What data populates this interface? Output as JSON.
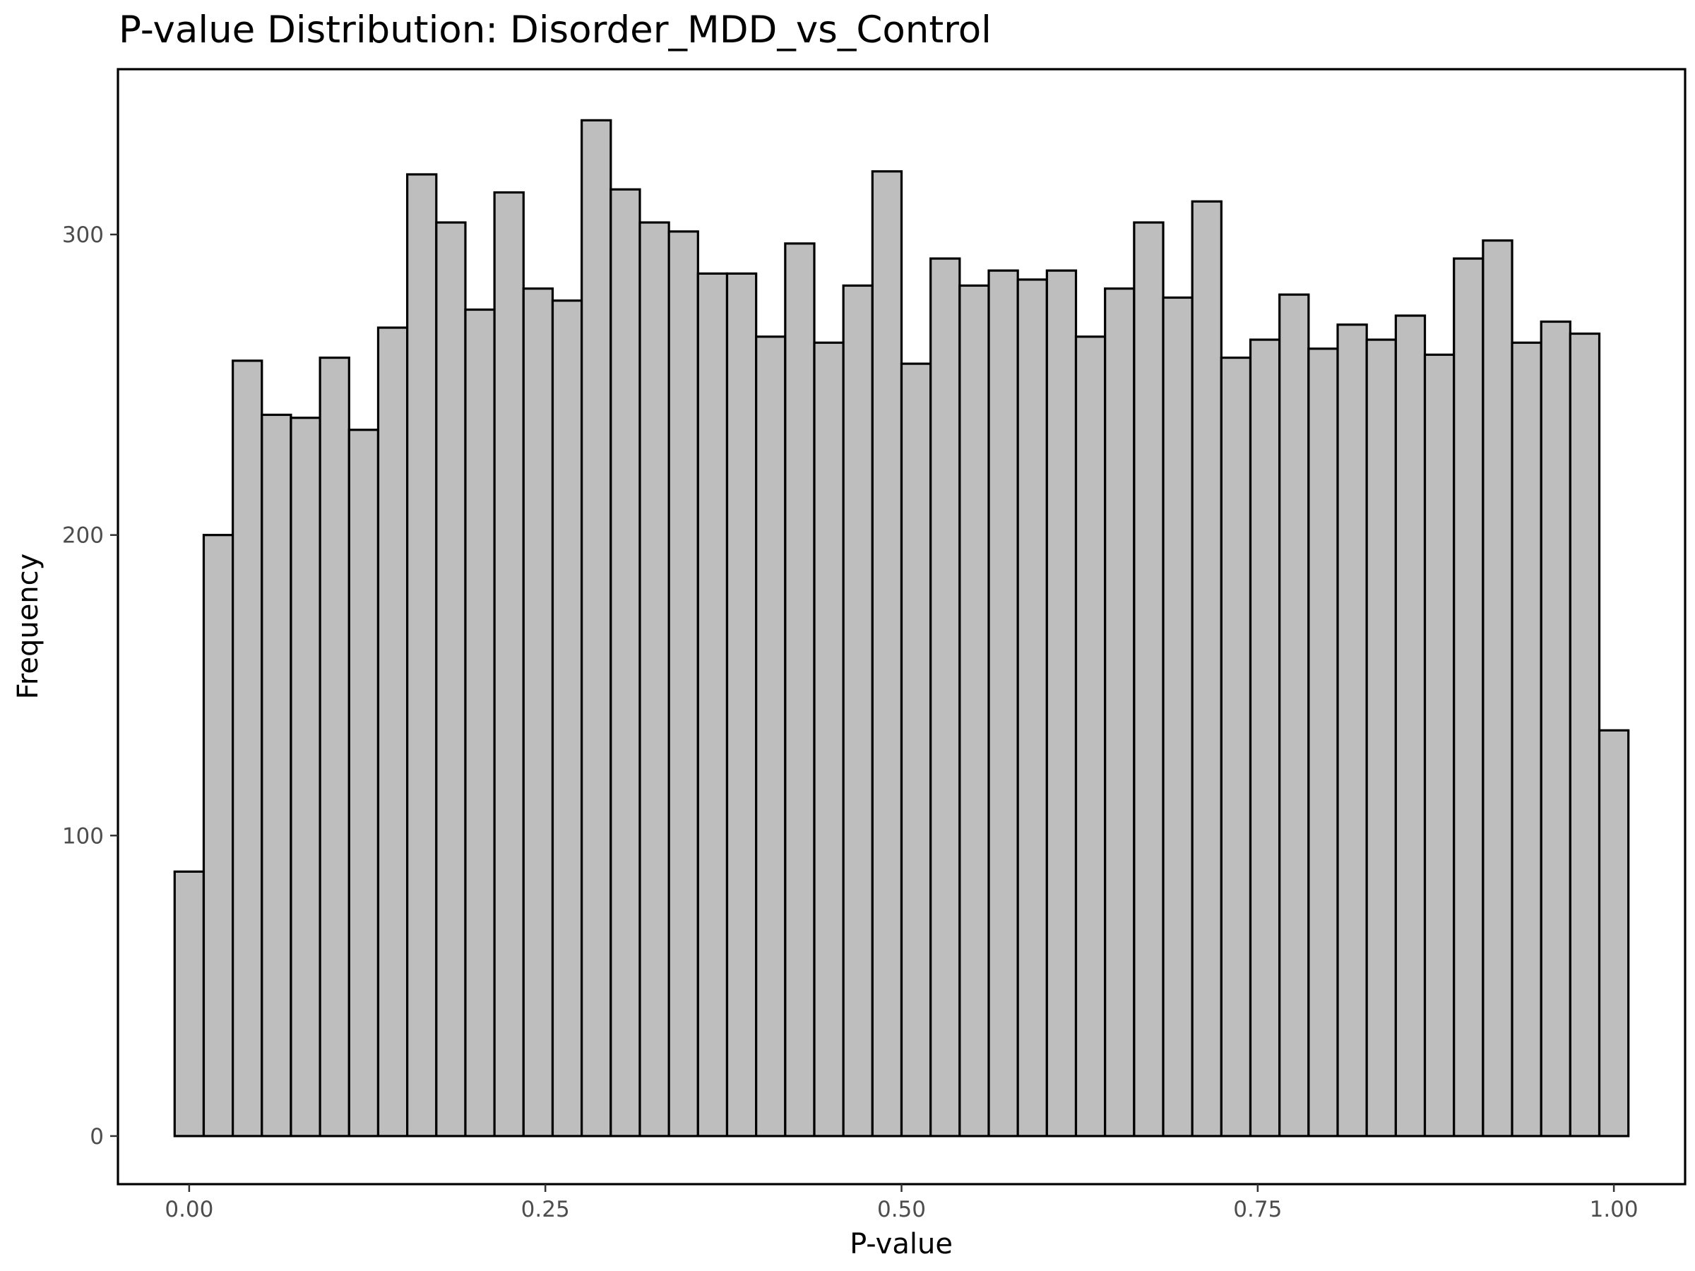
{
  "chart_data": {
    "type": "bar",
    "title": "P-value Distribution: Disorder_MDD_vs_Control",
    "xlabel": "P-value",
    "ylabel": "Frequency",
    "xlim": [
      -0.05,
      1.05
    ],
    "ylim": [
      -16,
      355
    ],
    "x_ticks": [
      0,
      0.25,
      0.5,
      0.75,
      1.0
    ],
    "x_tick_labels": [
      "0.00",
      "0.25",
      "0.50",
      "0.75",
      "1.00"
    ],
    "y_ticks": [
      0,
      100,
      200,
      300
    ],
    "y_tick_labels": [
      "0",
      "100",
      "200",
      "300"
    ],
    "grid": false,
    "bin_start": -0.010204,
    "bin_width": 0.020408,
    "values": [
      88,
      200,
      258,
      240,
      239,
      259,
      235,
      269,
      320,
      304,
      275,
      314,
      282,
      278,
      338,
      315,
      304,
      301,
      287,
      287,
      266,
      297,
      264,
      283,
      321,
      257,
      292,
      283,
      288,
      285,
      288,
      266,
      282,
      304,
      279,
      311,
      259,
      265,
      280,
      262,
      270,
      265,
      273,
      260,
      292,
      298,
      264,
      271,
      267,
      135
    ],
    "colors": {
      "fill": "#bebebe",
      "stroke": "#000000"
    }
  }
}
